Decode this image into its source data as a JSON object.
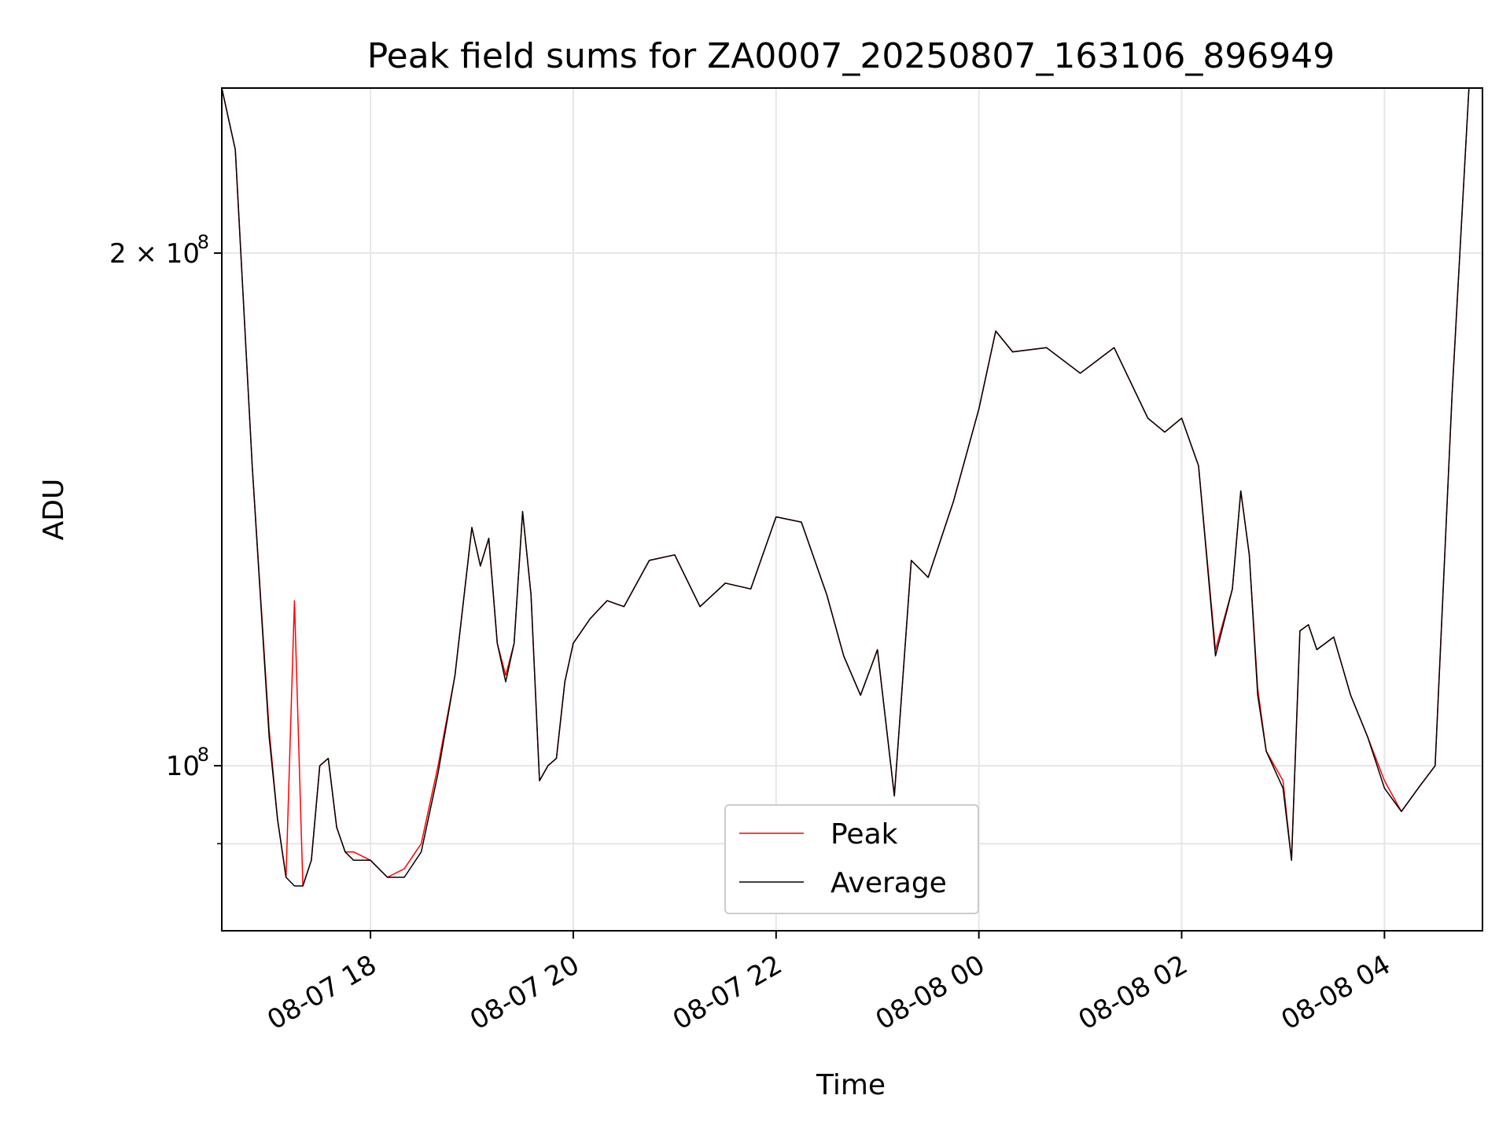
{
  "chart_data": {
    "type": "line",
    "title": "Peak field sums for ZA0007_20250807_163106_896949",
    "xlabel": "Time",
    "ylabel": "ADU",
    "yscale": "log",
    "ylim": [
      80000000,
      250000000
    ],
    "xlim": [
      "2025-08-07T16:32",
      "2025-08-08T04:58"
    ],
    "grid": true,
    "legend_position": "lower center",
    "x_ticks": [
      {
        "value": "2025-08-07T18:00",
        "label": "08-07 18"
      },
      {
        "value": "2025-08-07T20:00",
        "label": "08-07 20"
      },
      {
        "value": "2025-08-07T22:00",
        "label": "08-07 22"
      },
      {
        "value": "2025-08-08T00:00",
        "label": "08-08 00"
      },
      {
        "value": "2025-08-08T02:00",
        "label": "08-08 02"
      },
      {
        "value": "2025-08-08T04:00",
        "label": "08-08 04"
      }
    ],
    "y_ticks": [
      {
        "value": 100000000,
        "label": "10",
        "exp": "8"
      },
      {
        "value": 200000000,
        "label": "2 × 10",
        "exp": "8"
      }
    ],
    "y_minor_ticks": [
      90000000
    ],
    "x": [
      "2025-08-07T16:32",
      "2025-08-07T16:40",
      "2025-08-07T16:50",
      "2025-08-07T17:00",
      "2025-08-07T17:05",
      "2025-08-07T17:10",
      "2025-08-07T17:15",
      "2025-08-07T17:20",
      "2025-08-07T17:25",
      "2025-08-07T17:30",
      "2025-08-07T17:35",
      "2025-08-07T17:40",
      "2025-08-07T17:45",
      "2025-08-07T17:50",
      "2025-08-07T18:00",
      "2025-08-07T18:10",
      "2025-08-07T18:20",
      "2025-08-07T18:30",
      "2025-08-07T18:40",
      "2025-08-07T18:50",
      "2025-08-07T19:00",
      "2025-08-07T19:05",
      "2025-08-07T19:10",
      "2025-08-07T19:15",
      "2025-08-07T19:20",
      "2025-08-07T19:25",
      "2025-08-07T19:30",
      "2025-08-07T19:35",
      "2025-08-07T19:40",
      "2025-08-07T19:45",
      "2025-08-07T19:50",
      "2025-08-07T19:55",
      "2025-08-07T20:00",
      "2025-08-07T20:10",
      "2025-08-07T20:20",
      "2025-08-07T20:30",
      "2025-08-07T20:45",
      "2025-08-07T21:00",
      "2025-08-07T21:15",
      "2025-08-07T21:30",
      "2025-08-07T21:45",
      "2025-08-07T22:00",
      "2025-08-07T22:15",
      "2025-08-07T22:30",
      "2025-08-07T22:40",
      "2025-08-07T22:50",
      "2025-08-07T23:00",
      "2025-08-07T23:10",
      "2025-08-07T23:20",
      "2025-08-07T23:30",
      "2025-08-07T23:45",
      "2025-08-08T00:00",
      "2025-08-08T00:10",
      "2025-08-08T00:20",
      "2025-08-08T00:40",
      "2025-08-08T01:00",
      "2025-08-08T01:20",
      "2025-08-08T01:40",
      "2025-08-08T01:50",
      "2025-08-08T02:00",
      "2025-08-08T02:10",
      "2025-08-08T02:20",
      "2025-08-08T02:30",
      "2025-08-08T02:35",
      "2025-08-08T02:40",
      "2025-08-08T02:45",
      "2025-08-08T02:50",
      "2025-08-08T03:00",
      "2025-08-08T03:05",
      "2025-08-08T03:10",
      "2025-08-08T03:15",
      "2025-08-08T03:20",
      "2025-08-08T03:30",
      "2025-08-08T03:40",
      "2025-08-08T03:50",
      "2025-08-08T04:00",
      "2025-08-08T04:10",
      "2025-08-08T04:20",
      "2025-08-08T04:30",
      "2025-08-08T04:40",
      "2025-08-08T04:50",
      "2025-08-08T04:58"
    ],
    "series": [
      {
        "name": "Peak",
        "color": "#ff0000",
        "values": [
          250000000,
          230000000,
          150000000,
          105000000,
          93000000,
          86000000,
          125000000,
          85000000,
          88000000,
          100000000,
          101000000,
          92000000,
          89000000,
          89000000,
          88000000,
          86000000,
          87000000,
          90000000,
          100000000,
          113000000,
          138000000,
          131000000,
          136000000,
          118000000,
          113000000,
          118000000,
          141000000,
          126000000,
          98000000,
          100000000,
          101000000,
          112000000,
          118000000,
          122000000,
          125000000,
          124000000,
          132000000,
          133000000,
          124000000,
          128000000,
          127000000,
          140000000,
          139000000,
          126000000,
          116000000,
          110000000,
          117000000,
          96000000,
          132000000,
          129000000,
          143000000,
          162000000,
          180000000,
          175000000,
          176000000,
          170000000,
          176000000,
          160000000,
          157000000,
          160000000,
          150000000,
          117000000,
          127000000,
          145000000,
          133000000,
          111000000,
          102000000,
          98000000,
          88000000,
          120000000,
          121000000,
          117000000,
          119000000,
          110000000,
          104000000,
          98000000,
          94000000,
          97000000,
          100000000,
          165000000,
          250000000,
          250000000
        ]
      },
      {
        "name": "Average",
        "color": "#000000",
        "values": [
          250000000,
          230000000,
          150000000,
          104000000,
          93000000,
          86000000,
          85000000,
          85000000,
          88000000,
          100000000,
          101000000,
          92000000,
          89000000,
          88000000,
          88000000,
          86000000,
          86000000,
          89000000,
          99000000,
          113000000,
          138000000,
          131000000,
          136000000,
          118000000,
          112000000,
          118000000,
          141000000,
          126000000,
          98000000,
          100000000,
          101000000,
          112000000,
          118000000,
          122000000,
          125000000,
          124000000,
          132000000,
          133000000,
          124000000,
          128000000,
          127000000,
          140000000,
          139000000,
          126000000,
          116000000,
          110000000,
          117000000,
          96000000,
          132000000,
          129000000,
          143000000,
          162000000,
          180000000,
          175000000,
          176000000,
          170000000,
          176000000,
          160000000,
          157000000,
          160000000,
          150000000,
          116000000,
          127000000,
          145000000,
          133000000,
          110000000,
          102000000,
          97000000,
          88000000,
          120000000,
          121000000,
          117000000,
          119000000,
          110000000,
          104000000,
          97000000,
          94000000,
          97000000,
          100000000,
          165000000,
          250000000,
          250000000
        ]
      }
    ]
  }
}
